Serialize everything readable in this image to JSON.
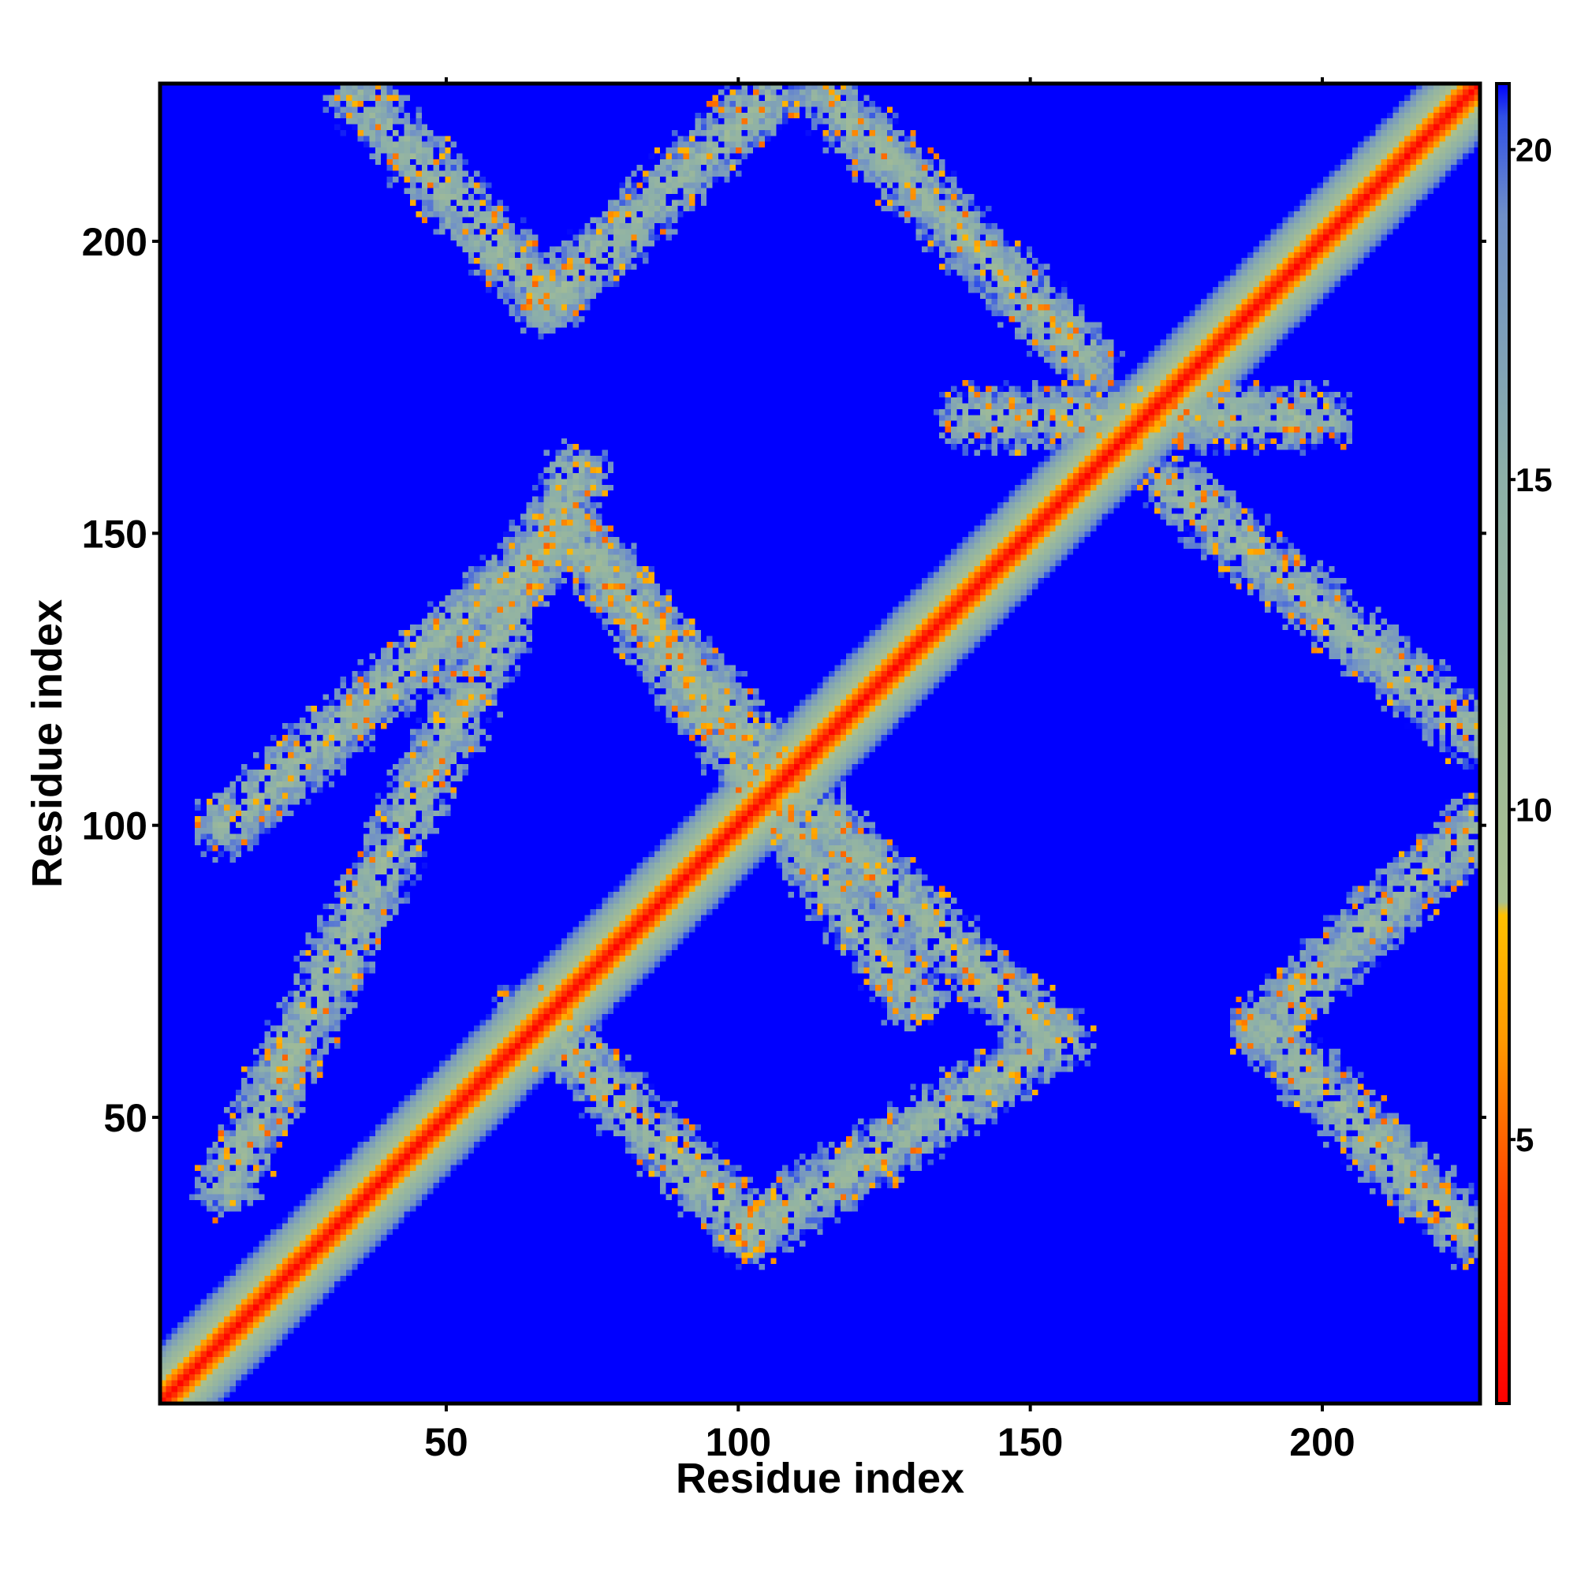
{
  "chart_data": {
    "type": "heatmap",
    "title": "",
    "xlabel": "Residue index",
    "ylabel": "Residue index",
    "n_residues": 227,
    "xlim": [
      1,
      227
    ],
    "ylim": [
      1,
      227
    ],
    "x_ticks": [
      50,
      100,
      150,
      200
    ],
    "y_ticks": [
      50,
      100,
      150,
      200
    ],
    "colorbar": {
      "range": [
        1,
        21
      ],
      "ticks": [
        5,
        10,
        15,
        20
      ],
      "stops": [
        {
          "value": 1,
          "color": "#ff0000"
        },
        {
          "value": 4,
          "color": "#ff4000"
        },
        {
          "value": 6.5,
          "color": "#ff9900"
        },
        {
          "value": 8.4,
          "color": "#ffc000"
        },
        {
          "value": 8.6,
          "color": "#a9c08f"
        },
        {
          "value": 15,
          "color": "#8db0a8"
        },
        {
          "value": 19,
          "color": "#6f8fc8"
        },
        {
          "value": 20.5,
          "color": "#3050e6"
        },
        {
          "value": 21,
          "color": "#0000ff"
        }
      ]
    },
    "background_value": 21,
    "diagonal_band": {
      "center_value": 1,
      "half_width_residues": 10
    },
    "off_diagonal_bands": [
      {
        "from": [
          12,
          38
        ],
        "to": [
          72,
          160
        ],
        "note": "antiparallel-contact"
      },
      {
        "from": [
          12,
          100
        ],
        "to": [
          70,
          150
        ],
        "note": "contact"
      },
      {
        "from": [
          72,
          150
        ],
        "to": [
          130,
          70
        ],
        "note": "contact"
      },
      {
        "from": [
          64,
          68
        ],
        "to": [
          102,
          30
        ],
        "note": "contact"
      },
      {
        "from": [
          102,
          30
        ],
        "to": [
          155,
          63
        ],
        "note": "contact"
      },
      {
        "from": [
          76,
          145
        ],
        "to": [
          120,
          95
        ],
        "note": "contact"
      },
      {
        "from": [
          120,
          95
        ],
        "to": [
          152,
          65
        ],
        "note": "contact"
      },
      {
        "from": [
          35,
          225
        ],
        "to": [
          67,
          190
        ],
        "note": "contact"
      },
      {
        "from": [
          67,
          190
        ],
        "to": [
          105,
          225
        ],
        "note": "contact"
      },
      {
        "from": [
          115,
          225
        ],
        "to": [
          160,
          180
        ],
        "note": "contact"
      },
      {
        "from": [
          140,
          170
        ],
        "to": [
          200,
          170
        ],
        "note": "contact"
      },
      {
        "from": [
          175,
          158
        ],
        "to": [
          227,
          115
        ],
        "note": "contact"
      },
      {
        "from": [
          190,
          65
        ],
        "to": [
          227,
          100
        ],
        "note": "contact"
      },
      {
        "from": [
          190,
          65
        ],
        "to": [
          225,
          30
        ],
        "note": "contact"
      }
    ]
  }
}
